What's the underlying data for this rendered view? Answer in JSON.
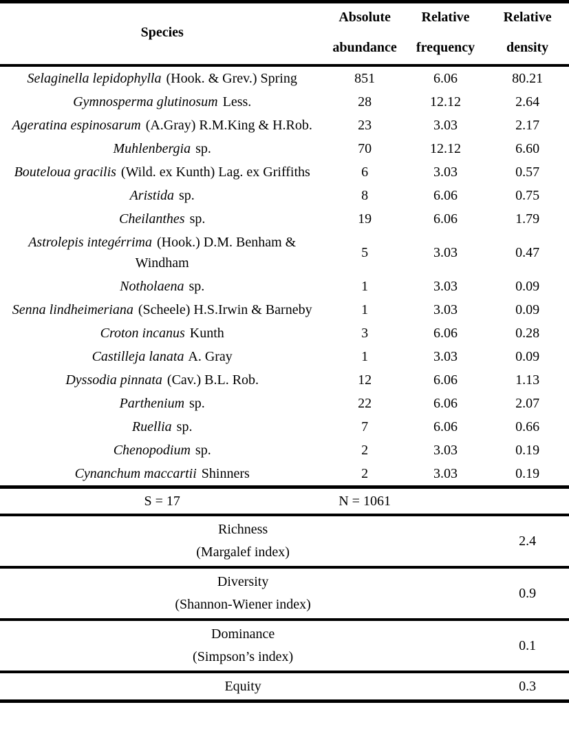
{
  "table": {
    "headers": {
      "species": "Species",
      "abundance_line1": "Absolute",
      "abundance_line2": "abundance",
      "frequency_line1": "Relative",
      "frequency_line2": "frequency",
      "density_line1": "Relative",
      "density_line2": "density"
    },
    "rows": [
      {
        "italic": "Selaginella lepidophylla",
        "roman": " (Hook. & Grev.) Spring",
        "abundance": "851",
        "frequency": "6.06",
        "density": "80.21"
      },
      {
        "italic": "Gymnosperma glutinosum",
        "roman": " Less.",
        "abundance": "28",
        "frequency": "12.12",
        "density": "2.64"
      },
      {
        "italic": "Ageratina espinosarum",
        "roman": " (A.Gray) R.M.King & H.Rob.",
        "abundance": "23",
        "frequency": "3.03",
        "density": "2.17"
      },
      {
        "italic": "Muhlenbergia",
        "roman": " sp.",
        "abundance": "70",
        "frequency": "12.12",
        "density": "6.60"
      },
      {
        "italic": "Bouteloua gracilis",
        "roman": " (Wild. ex Kunth) Lag. ex Griffiths",
        "abundance": "6",
        "frequency": "3.03",
        "density": "0.57"
      },
      {
        "italic": "Aristida",
        "roman": " sp.",
        "abundance": "8",
        "frequency": "6.06",
        "density": "0.75"
      },
      {
        "italic": "Cheilanthes",
        "roman": " sp.",
        "abundance": "19",
        "frequency": "6.06",
        "density": "1.79"
      },
      {
        "italic": "Astrolepis integérrima",
        "roman": " (Hook.) D.M. Benham & Windham",
        "abundance": "5",
        "frequency": "3.03",
        "density": "0.47"
      },
      {
        "italic": "Notholaena",
        "roman": " sp.",
        "abundance": "1",
        "frequency": "3.03",
        "density": "0.09"
      },
      {
        "italic": "Senna lindheimeriana",
        "roman": " (Scheele) H.S.Irwin & Barneby",
        "abundance": "1",
        "frequency": "3.03",
        "density": "0.09"
      },
      {
        "italic": "Croton incanus",
        "roman": " Kunth",
        "abundance": "3",
        "frequency": "6.06",
        "density": "0.28"
      },
      {
        "italic": "Castilleja lanata",
        "roman": " A. Gray",
        "abundance": "1",
        "frequency": "3.03",
        "density": "0.09"
      },
      {
        "italic": "Dyssodia pinnata",
        "roman": " (Cav.) B.L. Rob.",
        "abundance": "12",
        "frequency": "6.06",
        "density": "1.13"
      },
      {
        "italic": "Parthenium",
        "roman": " sp.",
        "abundance": "22",
        "frequency": "6.06",
        "density": "2.07"
      },
      {
        "italic": "Ruellia",
        "roman": " sp.",
        "abundance": "7",
        "frequency": "6.06",
        "density": "0.66"
      },
      {
        "italic": "Chenopodium",
        "roman": " sp.",
        "abundance": "2",
        "frequency": "3.03",
        "density": "0.19"
      },
      {
        "italic": "Cynanchum maccartii",
        "roman": " Shinners",
        "abundance": "2",
        "frequency": "3.03",
        "density": "0.19"
      }
    ],
    "totals": {
      "species_count": "S = 17",
      "individuals_count": "N = 1061"
    },
    "indices": [
      {
        "label_line1": "Richness",
        "label_line2": "(Margalef index)",
        "value": "2.4"
      },
      {
        "label_line1": "Diversity",
        "label_line2": "(Shannon-Wiener index)",
        "value": "0.9"
      },
      {
        "label_line1": "Dominance",
        "label_line2": "(Simpson’s index)",
        "value": "0.1"
      },
      {
        "label_line1": "Equity",
        "label_line2": "",
        "value": "0.3"
      }
    ]
  },
  "colors": {
    "text": "#000000",
    "background": "#ffffff",
    "rule": "#000000"
  }
}
